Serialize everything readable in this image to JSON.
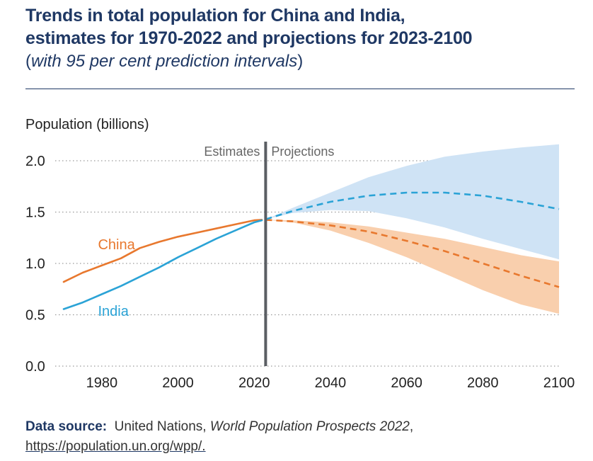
{
  "title_line1": "Trends in total population for China and India,",
  "title_line2": "estimates for 1970-2022 and projections for 2023-2100",
  "subtitle_open": "(",
  "subtitle_text": "with 95 per cent prediction intervals",
  "subtitle_close": ")",
  "source": {
    "label": "Data source:",
    "org": "United Nations,",
    "publication": "World Population Prospects 2022",
    "comma": ",",
    "url": "https://population.un.org/wpp/."
  },
  "colors": {
    "china": "#e8782e",
    "china_band": "#f9cfad",
    "india": "#2ba3d6",
    "india_band": "#cfe3f5",
    "divider": "#5a5e63",
    "title": "#1f3864"
  },
  "chart_data": {
    "type": "line",
    "ylabel": "Population (billions)",
    "xlim": [
      1970,
      2100
    ],
    "ylim": [
      0,
      2.0
    ],
    "yticks": [
      0.0,
      0.5,
      1.0,
      1.5,
      2.0
    ],
    "ytick_labels": [
      "0.0",
      "0.5",
      "1.0",
      "1.5",
      "2.0"
    ],
    "xticks": [
      1980,
      2000,
      2020,
      2040,
      2060,
      2080,
      2100
    ],
    "xtick_labels": [
      "1980",
      "2000",
      "2020",
      "2040",
      "2060",
      "2080",
      "2100"
    ],
    "grid": "horizontal dotted",
    "divider_year": 2023,
    "region_labels": [
      "Estimates",
      "Projections"
    ],
    "series": [
      {
        "name": "China",
        "estimates": {
          "x": [
            1970,
            1975,
            1980,
            1985,
            1990,
            1995,
            2000,
            2005,
            2010,
            2015,
            2020,
            2022
          ],
          "y": [
            0.82,
            0.91,
            0.98,
            1.05,
            1.15,
            1.21,
            1.26,
            1.3,
            1.34,
            1.38,
            1.42,
            1.425
          ]
        },
        "projection": {
          "x": [
            2023,
            2030,
            2040,
            2050,
            2060,
            2070,
            2080,
            2090,
            2100
          ],
          "y": [
            1.425,
            1.41,
            1.37,
            1.31,
            1.22,
            1.12,
            1.0,
            0.88,
            0.77
          ],
          "lower": [
            1.425,
            1.4,
            1.32,
            1.2,
            1.06,
            0.9,
            0.74,
            0.6,
            0.51
          ],
          "upper": [
            1.425,
            1.42,
            1.4,
            1.36,
            1.3,
            1.24,
            1.16,
            1.08,
            1.02
          ]
        }
      },
      {
        "name": "India",
        "estimates": {
          "x": [
            1970,
            1975,
            1980,
            1985,
            1990,
            1995,
            2000,
            2005,
            2010,
            2015,
            2020,
            2022
          ],
          "y": [
            0.555,
            0.62,
            0.7,
            0.78,
            0.87,
            0.96,
            1.06,
            1.15,
            1.24,
            1.32,
            1.4,
            1.42
          ]
        },
        "projection": {
          "x": [
            2023,
            2030,
            2040,
            2050,
            2060,
            2070,
            2080,
            2090,
            2100
          ],
          "y": [
            1.43,
            1.51,
            1.6,
            1.66,
            1.69,
            1.69,
            1.66,
            1.6,
            1.53
          ],
          "lower": [
            1.43,
            1.49,
            1.52,
            1.51,
            1.44,
            1.35,
            1.24,
            1.14,
            1.04
          ],
          "upper": [
            1.43,
            1.54,
            1.69,
            1.84,
            1.95,
            2.04,
            2.09,
            2.13,
            2.16
          ]
        }
      }
    ]
  }
}
